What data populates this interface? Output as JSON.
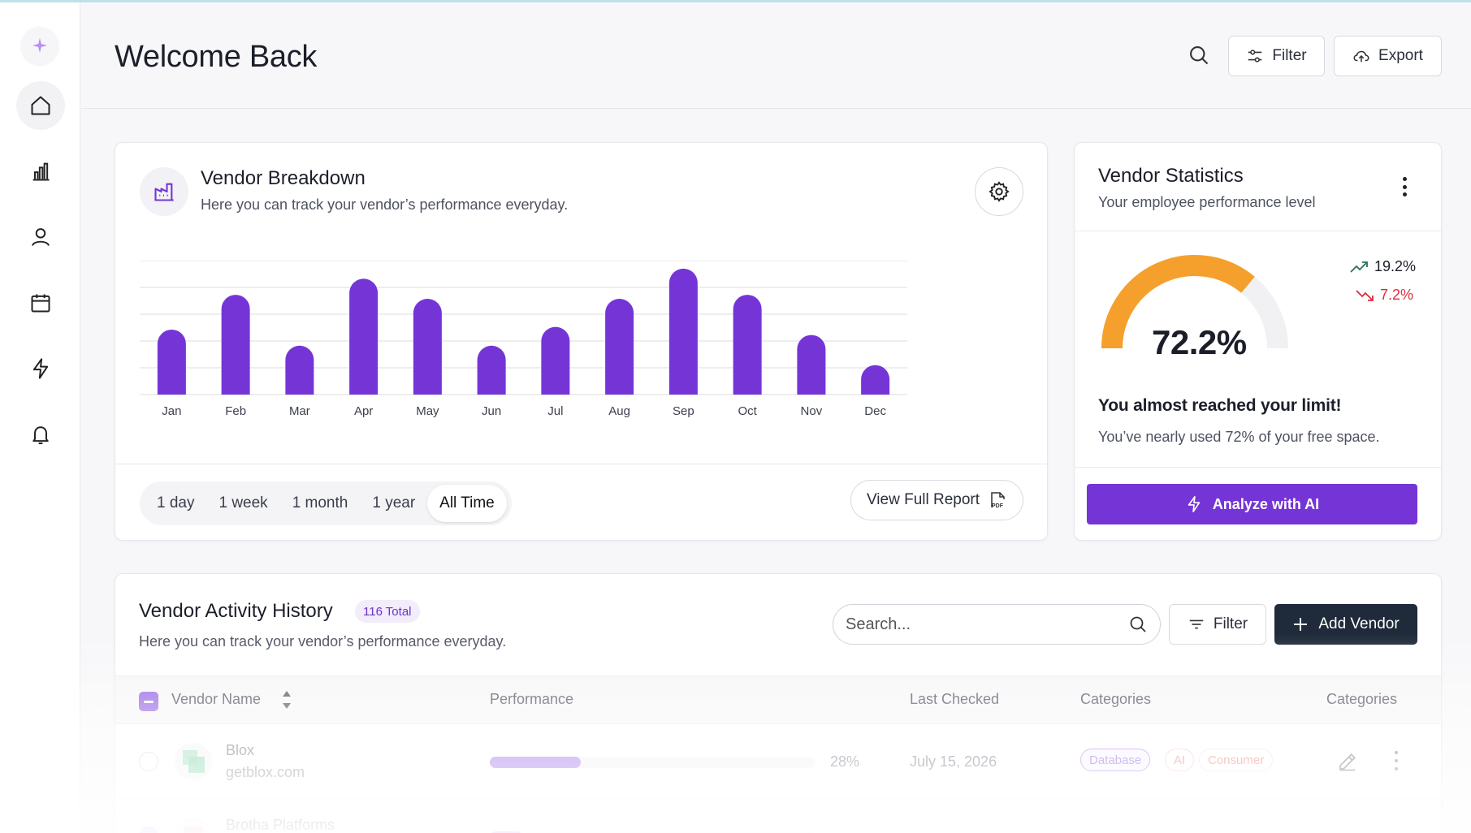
{
  "header": {
    "title": "Welcome Back",
    "filter_label": "Filter",
    "export_label": "Export"
  },
  "sidebar": {
    "items": [
      {
        "icon": "home-icon",
        "active": true
      },
      {
        "icon": "chart-icon",
        "active": false
      },
      {
        "icon": "user-icon",
        "active": false
      },
      {
        "icon": "calendar-icon",
        "active": false
      },
      {
        "icon": "lightning-icon",
        "active": false
      },
      {
        "icon": "bell-icon",
        "active": false
      }
    ]
  },
  "breakdown": {
    "title": "Vendor Breakdown",
    "subtitle": "Here you can track your vendor’s performance everyday.",
    "ranges": [
      "1 day",
      "1 week",
      "1 month",
      "1 year",
      "All Time"
    ],
    "active_range": "All Time",
    "report_label": "View Full Report"
  },
  "chart_data": {
    "type": "bar",
    "title": "Vendor Breakdown",
    "categories": [
      "Jan",
      "Feb",
      "Mar",
      "Apr",
      "May",
      "Jun",
      "Jul",
      "Aug",
      "Sep",
      "Oct",
      "Nov",
      "Dec"
    ],
    "values": [
      97,
      149,
      73,
      173,
      143,
      73,
      101,
      143,
      188,
      149,
      89,
      44
    ],
    "ylim": [
      0,
      200
    ],
    "xlabel": "",
    "ylabel": "",
    "grid": true,
    "color": "#7535d6"
  },
  "stats": {
    "title": "Vendor Statistics",
    "subtitle": "Your employee performance level",
    "gauge_value": "72.2%",
    "gauge_fraction": 0.722,
    "trend_up": "19.2%",
    "trend_down": "7.2%",
    "limit_title": "You almost reached your limit!",
    "limit_sub": "You’ve nearly used 72% of your free space.",
    "ai_label": "Analyze with AI",
    "colors": {
      "gauge": "#f5a02c",
      "track": "#f1f1f4",
      "up": "#2e6f5a",
      "down": "#e02b3c"
    }
  },
  "activity": {
    "title": "Vendor Activity History",
    "total_badge": "116 Total",
    "subtitle": "Here you can track your vendor’s performance everyday.",
    "search_placeholder": "Search...",
    "filter_label": "Filter",
    "add_label": "Add Vendor",
    "columns": [
      "Vendor Name",
      "Performance",
      "Last Checked",
      "Categories",
      "Categories"
    ],
    "rows": [
      {
        "name": "Blox",
        "domain": "getblox.com",
        "performance": 28,
        "performance_label": "28%",
        "last_checked": "July 15, 2026",
        "tags": [
          "Database",
          "AI",
          "Consumer"
        ]
      },
      {
        "name": "Brotha Platforms",
        "domain": "",
        "performance": 10,
        "performance_label": "",
        "last_checked": "",
        "tags": []
      }
    ]
  }
}
